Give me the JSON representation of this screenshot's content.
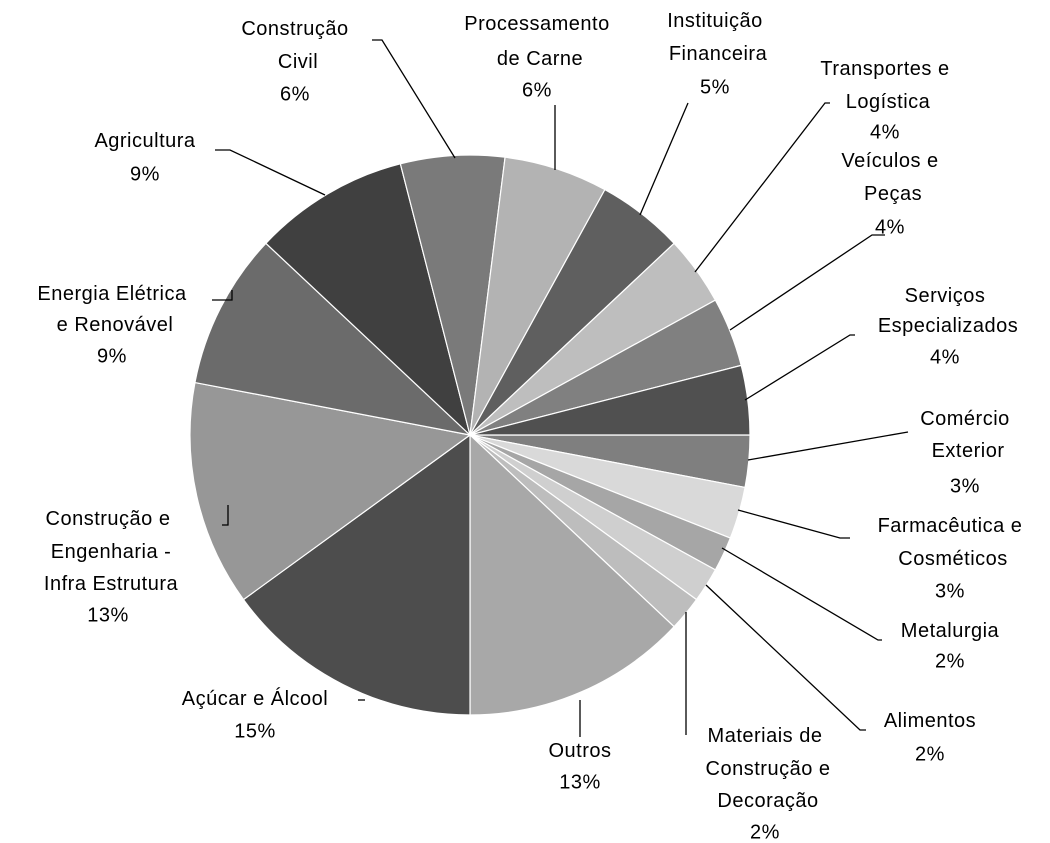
{
  "chart_data": {
    "type": "pie",
    "categories": [
      "Comércio Exterior",
      "Farmacêutica e Cosméticos",
      "Metalurgia",
      "Alimentos",
      "Materiais de Construção e Decoração",
      "Outros",
      "Açúcar e Álcool",
      "Construção e Engenharia - Infra Estrutura",
      "Energia Elétrica e Renovável",
      "Agricultura",
      "Construção Civil",
      "Processamento de Carne",
      "Instituição Financeira",
      "Transportes e Logística",
      "Veículos e Peças",
      "Serviços Especializados"
    ],
    "values": [
      3,
      3,
      2,
      2,
      2,
      13,
      15,
      13,
      9,
      9,
      6,
      6,
      5,
      4,
      4,
      4
    ],
    "value_labels": [
      "3%",
      "3%",
      "2%",
      "2%",
      "2%",
      "13%",
      "15%",
      "13%",
      "9%",
      "9%",
      "6%",
      "6%",
      "5%",
      "4%",
      "4%",
      "4%"
    ],
    "colors": [
      "#7f7f7f",
      "#d9d9d9",
      "#a6a6a6",
      "#cfcfcf",
      "#bdbdbd",
      "#a8a8a8",
      "#4d4d4d",
      "#979797",
      "#6b6b6b",
      "#404040",
      "#7a7a7a",
      "#b3b3b3",
      "#5f5f5f",
      "#bebebe",
      "#808080",
      "#505050"
    ]
  }
}
